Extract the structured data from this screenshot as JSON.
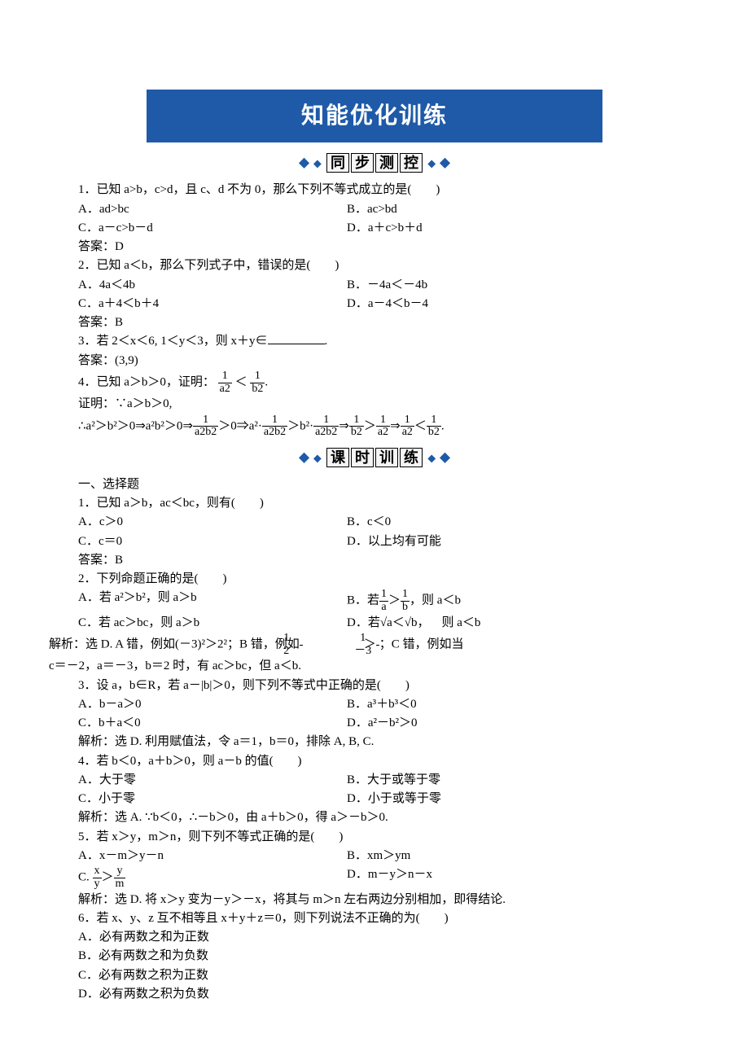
{
  "banner": "知能优化训练",
  "sections": {
    "sync": {
      "title_chars": [
        "同",
        "步",
        "测",
        "控"
      ]
    },
    "practice": {
      "title_chars": [
        "课",
        "时",
        "训",
        "练"
      ]
    }
  },
  "sync_questions": {
    "q1": {
      "stem": "1．已知 a>b，c>d，且 c、d 不为 0，那么下列不等式成立的是(　　)",
      "a": "A．ad>bc",
      "b": "B．ac>bd",
      "c": "C．a－c>b－d",
      "d": "D．a＋c>b＋d",
      "ans": "答案：D"
    },
    "q2": {
      "stem": "2．已知 a＜b，那么下列式子中，错误的是(　　)",
      "a": "A．4a＜4b",
      "b": "B．－4a＜－4b",
      "c": "C．a＋4＜b＋4",
      "d": "D．a－4＜b－4",
      "ans": "答案：B"
    },
    "q3": {
      "stem_pre": "3．若 2＜x＜6, 1＜y＜3，则 x＋y∈",
      "stem_post": ".",
      "ans": "答案：(3,9)"
    },
    "q4": {
      "stem_pre": "4．已知 a＞b＞0，证明：",
      "lt": "＜",
      "period": ".",
      "proof_label": "证明：∵a＞b＞0,",
      "chain_a": "∴a²＞b²＞0⇒a²b²＞0⇒",
      "chain_b": "＞0⇒a²·",
      "chain_c": "＞b²·",
      "chain_d": "⇒",
      "chain_e": "＞",
      "chain_f": "⇒",
      "chain_g": "＜",
      "chain_h": "."
    }
  },
  "section_label": "一、选择题",
  "practice_questions": {
    "q1": {
      "stem": "1．已知 a＞b，ac＜bc，则有(　　)",
      "a": "A．c＞0",
      "b": "B．c＜0",
      "c": "C．c＝0",
      "d": "D．以上均有可能",
      "ans": "答案：B"
    },
    "q2": {
      "stem": "2．下列命题正确的是(　　)",
      "a": "A．若 a²＞b²，则 a＞b",
      "b_pre": "B．若",
      "b_post": "，则 a＜b",
      "c": "C．若 ac＞bc，则 a＞b",
      "d_pre": "D．若",
      "d_post": "则 a＜b",
      "expl_a": "解析：选 D. A 错，例如(－3)²＞2²；B 错，例如",
      "expl_b": "＞",
      "expl_c": "；C 错，例如当",
      "expl_line2": "c＝－2，a＝－3，b＝2 时，有 ac＞bc，但 a＜b."
    },
    "q3": {
      "stem": "3．设 a，b∈R，若 a－|b|＞0，则下列不等式中正确的是(　　)",
      "a": "A．b－a＞0",
      "b": "B．a³＋b³＜0",
      "c": "C．b＋a＜0",
      "d": "D．a²－b²＞0",
      "expl": "解析：选 D. 利用赋值法，令 a＝1，b＝0，排除 A, B, C."
    },
    "q4": {
      "stem": "4．若 b＜0，a＋b＞0，则 a－b 的值(　　)",
      "a": "A．大于零",
      "b": "B．大于或等于零",
      "c": "C．小于零",
      "d": "D．小于或等于零",
      "expl": "解析：选 A. ∵b＜0，∴－b＞0，由 a＋b＞0，得 a＞－b＞0."
    },
    "q5": {
      "stem": "5．若 x＞y，m＞n，则下列不等式正确的是(　　)",
      "a": "A．x－m＞y－n",
      "b": "B．xm＞ym",
      "c_pre": "C. ",
      "d": "D．m－y＞n－x",
      "expl": "解析：选 D. 将 x＞y 变为－y＞－x，将其与 m＞n 左右两边分别相加，即得结论."
    },
    "q6": {
      "stem": "6．若 x、y、z 互不相等且 x＋y＋z＝0，则下列说法不正确的为(　　)",
      "a": "A．必有两数之和为正数",
      "b": "B．必有两数之和为负数",
      "c": "C．必有两数之积为正数",
      "d": "D．必有两数之积为负数"
    }
  },
  "frac": {
    "one": "1",
    "a2": "a2",
    "b2": "b2",
    "a2b2": "a2b2",
    "two": "2",
    "neg3": "－3",
    "x": "x",
    "y": "y",
    "m": "m",
    "a": "a",
    "b": "b",
    "gt": "＞",
    "comma": "，",
    "sqrt_a": "√a",
    "sqrt_b": "√b",
    "lt": "＜"
  },
  "colors": {
    "banner_bg": "#1e5aa8",
    "text": "#000000",
    "bg": "#ffffff"
  }
}
